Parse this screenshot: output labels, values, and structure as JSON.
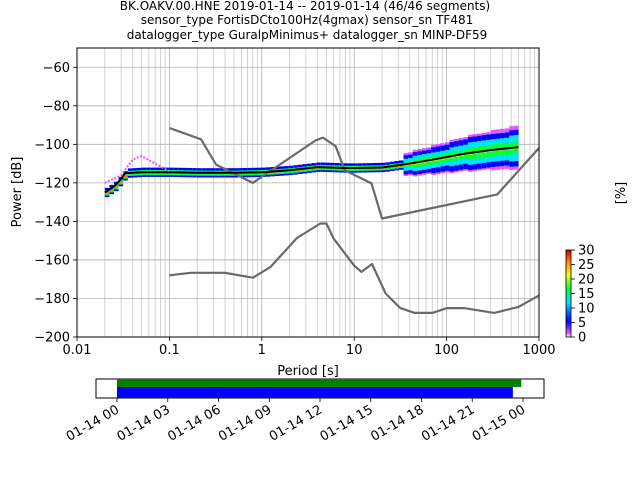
{
  "chart_data": {
    "type": "line",
    "title_lines": [
      "BK.OAKV.00.HNE   2019-01-14 -- 2019-01-14  (46/46 segments)",
      "sensor_type FortisDCto100Hz(4gmax) sensor_sn TF481",
      "datalogger_type GuralpMinimus+ datalogger_sn MINP-DF59"
    ],
    "xlabel": "Period [s]",
    "ylabel": "Power [dB]",
    "x_scale": "log",
    "xlim": [
      0.01,
      1000
    ],
    "ylim": [
      -200,
      -50
    ],
    "x_ticks": [
      0.01,
      0.1,
      1,
      10,
      100,
      1000
    ],
    "x_tick_labels": [
      "0.01",
      "0.1",
      "1",
      "10",
      "100",
      "1000"
    ],
    "y_ticks": [
      -200,
      -180,
      -160,
      -140,
      -120,
      -100,
      -80,
      -60
    ],
    "y_tick_labels": [
      "−200",
      "−180",
      "−160",
      "−140",
      "−120",
      "−100",
      "−80",
      "−60"
    ],
    "grid": true,
    "colorbar": {
      "label": "[%]",
      "range": [
        0,
        30
      ],
      "ticks": [
        0,
        5,
        10,
        15,
        20,
        25,
        30
      ],
      "tick_labels": [
        "0",
        "5",
        "10",
        "15",
        "20",
        "25",
        "30"
      ],
      "colors": [
        "#ffffff",
        "#e05cff",
        "#0000ff",
        "#00e0ff",
        "#00ff40",
        "#ffff00",
        "#ff8000",
        "#d00000"
      ]
    },
    "series": [
      {
        "role": "noise-model-high",
        "color": "#696969",
        "x": [
          0.1,
          0.22,
          0.32,
          0.8,
          3.8,
          4.6,
          6.3,
          7.9,
          15.4,
          20,
          354,
          10000
        ],
        "y": [
          -91.5,
          -97.4,
          -110.5,
          -120,
          -98,
          -96.5,
          -101,
          -113.5,
          -120.3,
          -138.5,
          -126,
          -48.5
        ]
      },
      {
        "role": "noise-model-low",
        "color": "#696969",
        "x": [
          0.1,
          0.17,
          0.4,
          0.8,
          1.24,
          2.4,
          4.3,
          5,
          6,
          10,
          12,
          15.6,
          21.9,
          31.6,
          45,
          70,
          101,
          154,
          328,
          600,
          10000
        ],
        "y": [
          -168,
          -166.7,
          -166.7,
          -169.2,
          -163.7,
          -148.6,
          -141.1,
          -141.1,
          -149,
          -163,
          -166.2,
          -162.1,
          -177.5,
          -185,
          -187.5,
          -187.5,
          -185,
          -185,
          -187.5,
          -184.4,
          -151.5
        ]
      },
      {
        "role": "psd-mode",
        "color": "#000000",
        "x": [
          0.02,
          0.025,
          0.03,
          0.033,
          0.05,
          0.1,
          0.2,
          0.5,
          1,
          2,
          4,
          8,
          10,
          20,
          40,
          80,
          150,
          300,
          600
        ],
        "y": [
          -125,
          -122,
          -118,
          -115,
          -114.5,
          -114.5,
          -114.8,
          -114.8,
          -114.5,
          -113.5,
          -111.8,
          -112.3,
          -112.3,
          -112,
          -110,
          -107.5,
          -105,
          -103,
          -101.5
        ]
      },
      {
        "role": "psd-spread-upper",
        "color": "#e05cff",
        "x": [
          0.02,
          0.03,
          0.04,
          0.05,
          0.07,
          0.1
        ],
        "y": [
          -120,
          -116,
          -108,
          -106,
          -110,
          -114
        ]
      }
    ]
  },
  "timeline": {
    "tick_labels": [
      "01-14 00",
      "01-14 03",
      "01-14 06",
      "01-14 09",
      "01-14 12",
      "01-14 15",
      "01-14 18",
      "01-14 21",
      "01-15 00"
    ],
    "hours_span": 24,
    "green_bar_hours": [
      0,
      23.9
    ],
    "blue_bar_hours": [
      0,
      23.4
    ],
    "green_color": "#008000",
    "blue_color": "#0000ff"
  }
}
